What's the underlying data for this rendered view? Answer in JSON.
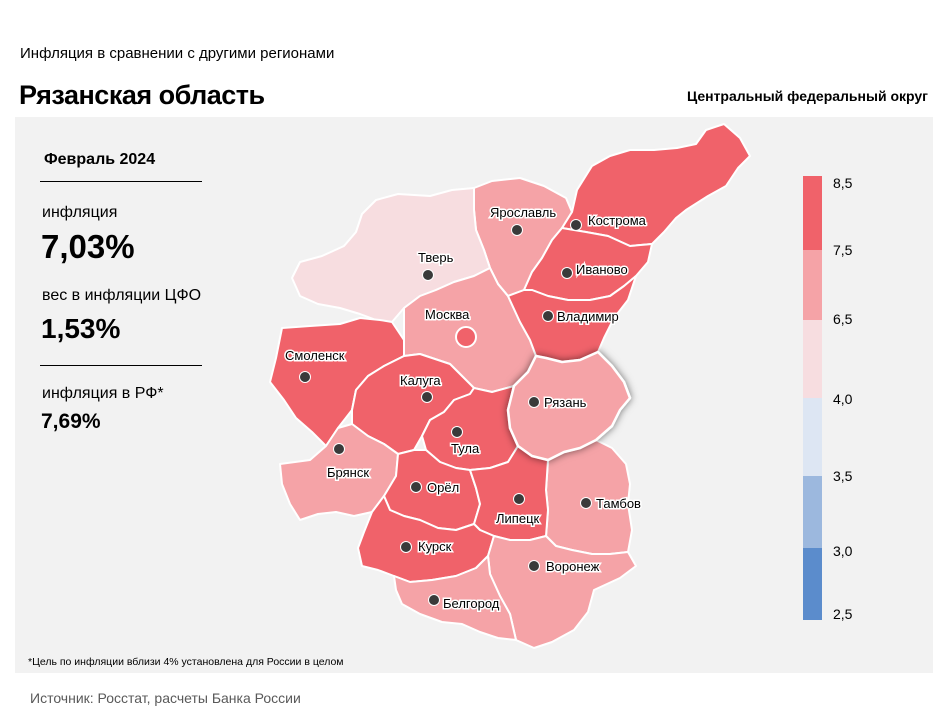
{
  "header": {
    "subtitle": "Инфляция  в сравнении  с другими  регионами",
    "title": "Рязанская область",
    "district": "Центральный федеральный округ"
  },
  "stats": {
    "period": "Февраль 2024",
    "inflation_label": "инфляция",
    "inflation_value": "7,03%",
    "weight_label": "вес в инфляции  ЦФО",
    "weight_value": "1,53%",
    "rf_label": "инфляция  в РФ*",
    "rf_value": "7,69%"
  },
  "footnote": "*Цель по инфляции вблизи 4% установлена для России в целом",
  "source": "Источник: Росстат, расчеты Банка России",
  "legend": {
    "labels": [
      "8,5",
      "7,5",
      "6,5",
      "4,0",
      "3,5",
      "3,0",
      "2,5"
    ],
    "colors": [
      "#f0626a",
      "#f5a3a7",
      "#f7dde0",
      "#dde6f3",
      "#9cb8de",
      "#5b8ccc"
    ]
  },
  "regions": [
    {
      "name": "Ярославль",
      "color": "#f5a3a7"
    },
    {
      "name": "Кострома",
      "color": "#f0626a"
    },
    {
      "name": "Тверь",
      "color": "#f7dde0"
    },
    {
      "name": "Иваново",
      "color": "#f0626a"
    },
    {
      "name": "Москва",
      "color": "#f5a3a7"
    },
    {
      "name": "Владимир",
      "color": "#f0626a"
    },
    {
      "name": "Смоленск",
      "color": "#f0626a"
    },
    {
      "name": "Калуга",
      "color": "#f0626a"
    },
    {
      "name": "Рязань",
      "color": "#f5a3a7"
    },
    {
      "name": "Тула",
      "color": "#f0626a"
    },
    {
      "name": "Брянск",
      "color": "#f5a3a7"
    },
    {
      "name": "Орёл",
      "color": "#f0626a"
    },
    {
      "name": "Тамбов",
      "color": "#f5a3a7"
    },
    {
      "name": "Липецк",
      "color": "#f0626a"
    },
    {
      "name": "Курск",
      "color": "#f0626a"
    },
    {
      "name": "Воронеж",
      "color": "#f5a3a7"
    },
    {
      "name": "Белгород",
      "color": "#f5a3a7"
    }
  ]
}
